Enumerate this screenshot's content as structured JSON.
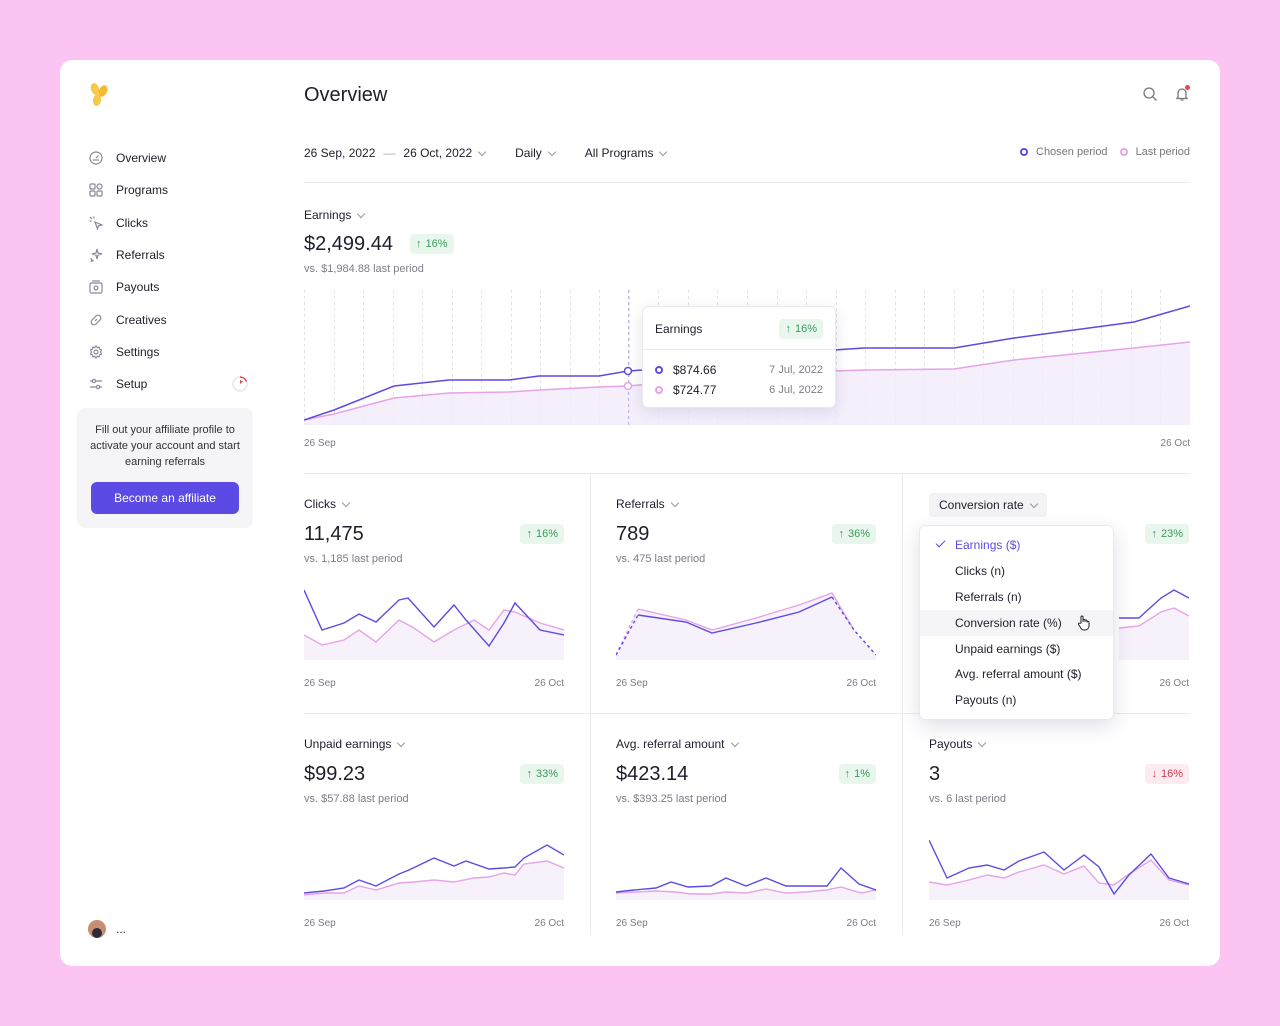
{
  "sidebar": {
    "items": [
      {
        "label": "Overview",
        "icon": "overview-icon"
      },
      {
        "label": "Programs",
        "icon": "programs-icon"
      },
      {
        "label": "Clicks",
        "icon": "clicks-icon"
      },
      {
        "label": "Referrals",
        "icon": "referrals-icon"
      },
      {
        "label": "Payouts",
        "icon": "payouts-icon"
      },
      {
        "label": "Creatives",
        "icon": "creatives-icon"
      },
      {
        "label": "Settings",
        "icon": "settings-icon"
      },
      {
        "label": "Setup",
        "icon": "setup-icon"
      }
    ],
    "promo": {
      "text": "Fill out your affiliate profile to activate your account and start earning referrals",
      "button": "Become an affiliate"
    },
    "user_label": "..."
  },
  "header": {
    "title": "Overview",
    "date_start": "26 Sep, 2022",
    "date_sep": "—",
    "date_end": "26 Oct, 2022",
    "interval": "Daily",
    "programs": "All Programs",
    "legend": {
      "chosen": "Chosen period",
      "last": "Last period"
    }
  },
  "colors": {
    "accent": "#5b4be4",
    "last": "#e6a4e6",
    "up": "#3a9a5c",
    "down": "#d2394f"
  },
  "earnings": {
    "label": "Earnings",
    "value": "$2,499.44",
    "change": "16%",
    "vs": "vs. $1,984.88 last period",
    "axis_start": "26 Sep",
    "axis_end": "26 Oct",
    "tooltip": {
      "title": "Earnings",
      "change": "16%",
      "rows": [
        {
          "value": "$874.66",
          "date": "7 Jul, 2022"
        },
        {
          "value": "$724.77",
          "date": "6 Jul, 2022"
        }
      ]
    }
  },
  "cards": [
    {
      "label": "Clicks",
      "value": "11,475",
      "change": "16%",
      "dir": "up",
      "vs": "vs. 1,185 last period",
      "start": "26 Sep",
      "end": "26 Oct"
    },
    {
      "label": "Referrals",
      "value": "789",
      "change": "36%",
      "dir": "up",
      "vs": "vs. 475 last period",
      "start": "26 Sep",
      "end": "26 Oct"
    },
    {
      "label": "Conversion rate",
      "value": "",
      "change": "23%",
      "dir": "up",
      "vs": "",
      "start": "",
      "end": "26 Oct"
    },
    {
      "label": "Unpaid earnings",
      "value": "$99.23",
      "change": "33%",
      "dir": "up",
      "vs": "vs. $57.88 last period",
      "start": "26 Sep",
      "end": "26 Oct"
    },
    {
      "label": "Avg. referral amount",
      "value": "$423.14",
      "change": "1%",
      "dir": "up",
      "vs": "vs. $393.25 last period",
      "start": "26 Sep",
      "end": "26 Oct"
    },
    {
      "label": "Payouts",
      "value": "3",
      "change": "16%",
      "dir": "down",
      "vs": "vs. 6 last period",
      "start": "26 Sep",
      "end": "26 Oct"
    }
  ],
  "dropdown": {
    "items": [
      "Earnings ($)",
      "Clicks (n)",
      "Referrals (n)",
      "Conversion rate (%)",
      "Unpaid earnings ($)",
      "Avg. referral amount ($)",
      "Payouts (n)"
    ],
    "selected": "Earnings ($)",
    "hovered": "Conversion rate (%)"
  }
}
